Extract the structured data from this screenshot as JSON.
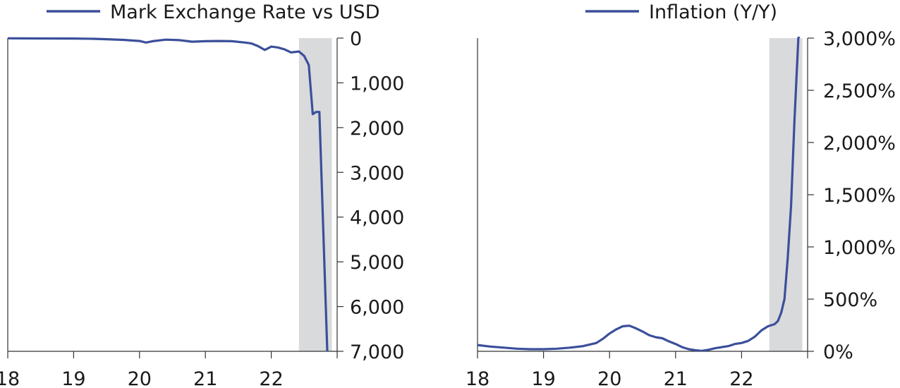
{
  "colors": {
    "line": "#3b4f9a",
    "shade": "#d9dadc",
    "axis": "#333333",
    "text": "#1a1a1a"
  },
  "chart_data": [
    {
      "type": "line",
      "legend": "Mark Exchange Rate vs USD",
      "legend_position": "top",
      "x_tick_labels": [
        "18",
        "19",
        "20",
        "21",
        "22"
      ],
      "x_ticks": [
        1918,
        1919,
        1920,
        1921,
        1922
      ],
      "xlim": [
        1918.0,
        1923.0
      ],
      "y_axis_side": "right",
      "y_inverted": true,
      "ylim": [
        0,
        7000
      ],
      "y_ticks": [
        0,
        1000,
        2000,
        3000,
        4000,
        5000,
        6000,
        7000
      ],
      "y_tick_labels": [
        "0",
        "1,000",
        "2,000",
        "3,000",
        "4,000",
        "5,000",
        "6,000",
        "7,000"
      ],
      "shaded_region": [
        1922.42,
        1922.92
      ],
      "grid": false,
      "series": [
        {
          "x": [
            1918.0,
            1918.5,
            1919.0,
            1919.3,
            1919.5,
            1919.75,
            1920.0,
            1920.1,
            1920.2,
            1920.4,
            1920.6,
            1920.8,
            1921.0,
            1921.2,
            1921.4,
            1921.6,
            1921.7,
            1921.8,
            1921.9,
            1922.0,
            1922.1,
            1922.2,
            1922.3,
            1922.42,
            1922.5,
            1922.57,
            1922.63,
            1922.68,
            1922.73,
            1922.85
          ],
          "y": [
            5,
            8,
            10,
            15,
            25,
            40,
            65,
            100,
            70,
            35,
            45,
            80,
            70,
            65,
            70,
            100,
            120,
            180,
            265,
            190,
            210,
            250,
            320,
            300,
            400,
            600,
            1700,
            1650,
            1650,
            7000
          ]
        }
      ]
    },
    {
      "type": "line",
      "legend": "Inflation (Y/Y)",
      "legend_position": "top",
      "x_tick_labels": [
        "18",
        "19",
        "20",
        "21",
        "22"
      ],
      "x_ticks": [
        1918,
        1919,
        1920,
        1921,
        1922
      ],
      "xlim": [
        1918.0,
        1923.0
      ],
      "y_axis_side": "right",
      "ylim": [
        0,
        3000
      ],
      "y_ticks": [
        0,
        500,
        1000,
        1500,
        2000,
        2500,
        3000
      ],
      "y_tick_labels": [
        "0%",
        "500%",
        "1,000%",
        "1,500%",
        "2,000%",
        "2,500%",
        "3,000%"
      ],
      "shaded_region": [
        1922.42,
        1922.92
      ],
      "grid": false,
      "series": [
        {
          "x": [
            1918.0,
            1918.2,
            1918.4,
            1918.6,
            1918.8,
            1919.0,
            1919.2,
            1919.4,
            1919.6,
            1919.8,
            1919.9,
            1920.0,
            1920.1,
            1920.2,
            1920.3,
            1920.4,
            1920.5,
            1920.6,
            1920.7,
            1920.8,
            1920.9,
            1921.0,
            1921.1,
            1921.2,
            1921.3,
            1921.4,
            1921.5,
            1921.6,
            1921.7,
            1921.8,
            1921.9,
            1922.0,
            1922.1,
            1922.2,
            1922.3,
            1922.4,
            1922.5,
            1922.55,
            1922.6,
            1922.65,
            1922.7,
            1922.75,
            1922.8,
            1922.86,
            1922.92
          ],
          "y": [
            60,
            45,
            35,
            25,
            20,
            20,
            25,
            35,
            50,
            80,
            120,
            170,
            210,
            240,
            245,
            220,
            190,
            155,
            135,
            125,
            95,
            70,
            40,
            20,
            10,
            5,
            15,
            30,
            40,
            50,
            70,
            80,
            100,
            140,
            200,
            240,
            260,
            290,
            370,
            500,
            900,
            1400,
            2200,
            3000,
            3100
          ]
        }
      ]
    }
  ]
}
